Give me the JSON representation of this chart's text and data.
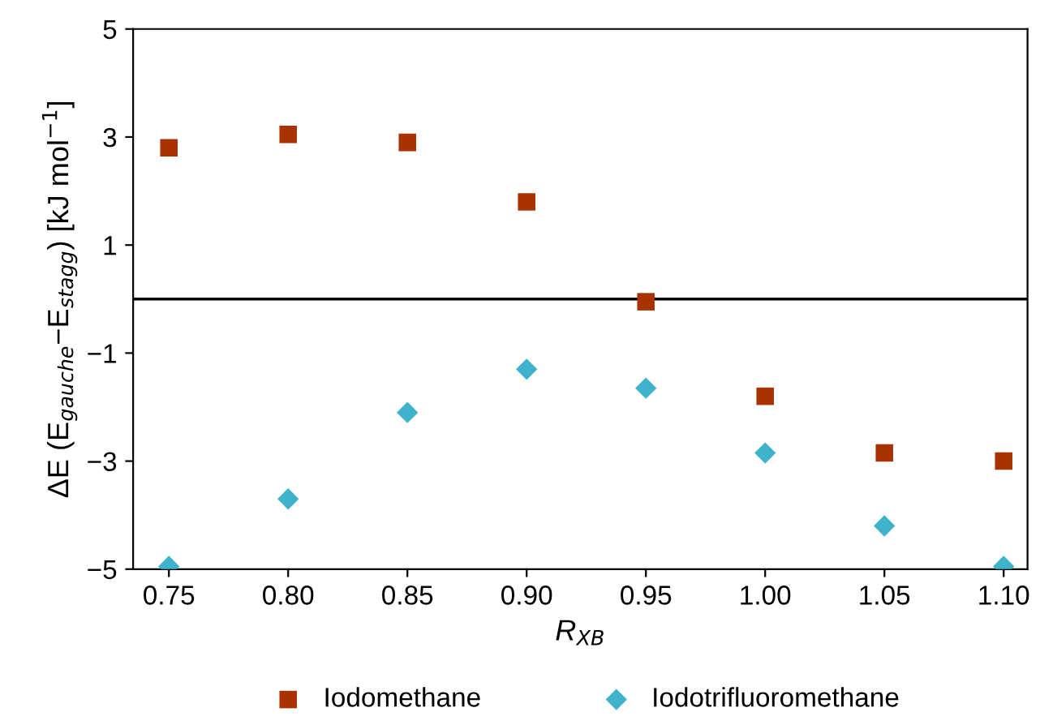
{
  "chart_data": {
    "type": "scatter",
    "xlabel": "R$_{XB}$",
    "ylabel": "ΔE (E$_{gauche}$−E$_{stagg}$) [kJ mol$^{−1}$]",
    "x": [
      0.75,
      0.8,
      0.85,
      0.9,
      0.95,
      1.0,
      1.05,
      1.1
    ],
    "series": [
      {
        "name": "Iodomethane",
        "color": "#a83200",
        "marker": "square",
        "values": [
          2.8,
          3.05,
          2.9,
          1.8,
          -0.05,
          -1.8,
          -2.85,
          -3.0
        ]
      },
      {
        "name": "Iodotrifluoromethane",
        "color": "#3fb3cc",
        "marker": "diamond",
        "values": [
          -4.95,
          -3.7,
          -2.1,
          -1.3,
          -1.65,
          -2.85,
          -4.2,
          -4.95
        ]
      }
    ],
    "xlim": [
      0.735,
      1.11
    ],
    "xticks": [
      {
        "value": 0.75,
        "label": "0.75"
      },
      {
        "value": 0.8,
        "label": "0.80"
      },
      {
        "value": 0.85,
        "label": "0.85"
      },
      {
        "value": 0.9,
        "label": "0.90"
      },
      {
        "value": 0.95,
        "label": "0.95"
      },
      {
        "value": 1.0,
        "label": "1.00"
      },
      {
        "value": 1.05,
        "label": "1.05"
      },
      {
        "value": 1.1,
        "label": "1.10"
      }
    ],
    "ylim": [
      -5,
      5
    ],
    "yticks": [
      5,
      3,
      1,
      {
        "value": -1,
        "label": "−1"
      },
      {
        "value": -3,
        "label": "−3"
      },
      {
        "value": -5,
        "label": "−5"
      }
    ],
    "ref_lines": [
      {
        "axis": "y",
        "value": 0,
        "color": "#000000"
      }
    ],
    "grid": false,
    "legend": "bottom"
  }
}
